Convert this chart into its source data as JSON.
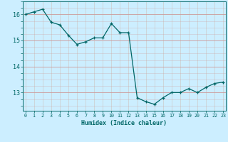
{
  "x": [
    0,
    1,
    2,
    3,
    4,
    5,
    6,
    7,
    8,
    9,
    10,
    11,
    12,
    13,
    14,
    15,
    16,
    17,
    18,
    19,
    20,
    21,
    22,
    23
  ],
  "y": [
    16.0,
    16.1,
    16.2,
    15.7,
    15.6,
    15.2,
    14.85,
    14.95,
    15.1,
    15.1,
    15.65,
    15.3,
    15.3,
    12.8,
    12.65,
    12.55,
    12.8,
    13.0,
    13.0,
    13.15,
    13.0,
    13.2,
    13.35,
    13.4
  ],
  "line_color": "#006666",
  "marker": "+",
  "bg_color": "#cceeff",
  "grid_h_color": "#cc9999",
  "grid_v_color": "#cccccc",
  "xlabel": "Humidex (Indice chaleur)",
  "ylim": [
    12.3,
    16.5
  ],
  "yticks": [
    13,
    14,
    15,
    16
  ],
  "xticks": [
    0,
    1,
    2,
    3,
    4,
    5,
    6,
    7,
    8,
    9,
    10,
    11,
    12,
    13,
    14,
    15,
    16,
    17,
    18,
    19,
    20,
    21,
    22,
    23
  ],
  "font_color": "#006666",
  "xlabel_fontsize": 6.0,
  "xtick_fontsize": 4.8,
  "ytick_fontsize": 6.0
}
